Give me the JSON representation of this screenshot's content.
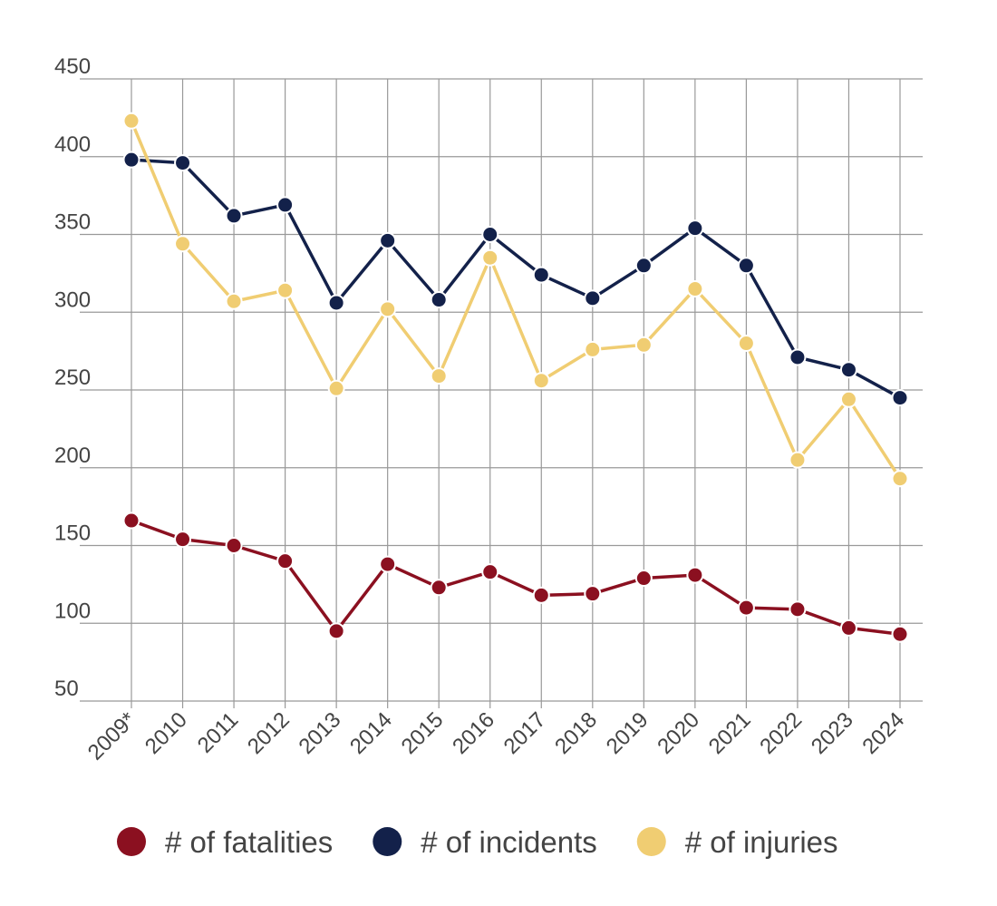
{
  "chart_data": {
    "type": "line",
    "categories": [
      "2009*",
      "2010",
      "2011",
      "2012",
      "2013",
      "2014",
      "2015",
      "2016",
      "2017",
      "2018",
      "2019",
      "2020",
      "2021",
      "2022",
      "2023",
      "2024"
    ],
    "series": [
      {
        "name": "# of fatalities",
        "color": "#8b1020",
        "values": [
          166,
          154,
          150,
          140,
          95,
          138,
          123,
          133,
          118,
          119,
          129,
          131,
          110,
          109,
          97,
          93
        ]
      },
      {
        "name": "# of incidents",
        "color": "#13214a",
        "values": [
          398,
          396,
          362,
          369,
          306,
          346,
          308,
          350,
          324,
          309,
          330,
          354,
          330,
          271,
          263,
          245
        ]
      },
      {
        "name": "# of injuries",
        "color": "#f0cd72",
        "values": [
          423,
          344,
          307,
          314,
          251,
          302,
          259,
          335,
          256,
          276,
          279,
          315,
          280,
          205,
          244,
          193
        ]
      }
    ],
    "ylim": [
      50,
      450
    ],
    "yticks": [
      50,
      100,
      150,
      200,
      250,
      300,
      350,
      400,
      450
    ],
    "grid": true,
    "legend": "bottom"
  }
}
